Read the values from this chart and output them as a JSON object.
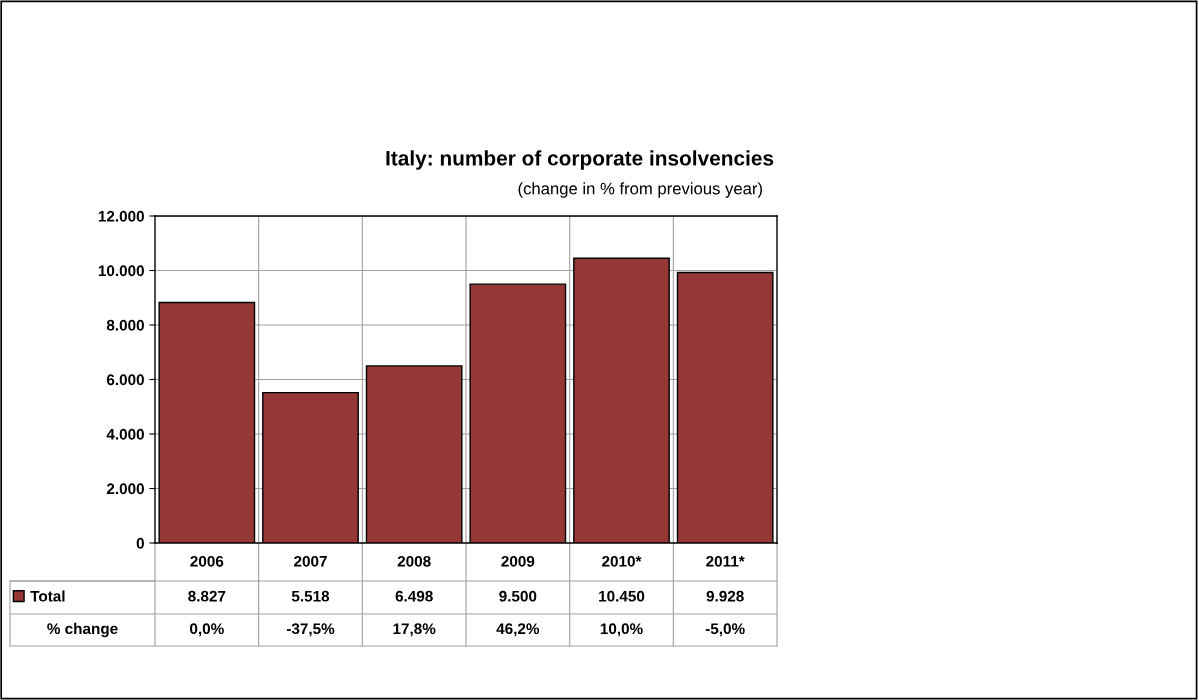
{
  "chart_data": {
    "type": "bar",
    "title": "Italy: number of corporate insolvencies",
    "subtitle": "(change in % from previous year)",
    "categories": [
      "2006",
      "2007",
      "2008",
      "2009",
      "2010*",
      "2011*"
    ],
    "series": [
      {
        "name": "Total",
        "color": "#953735",
        "values": [
          8827,
          5518,
          6498,
          9500,
          10450,
          9928
        ],
        "value_labels": [
          "8.827",
          "5.518",
          "6.498",
          "9.500",
          "10.450",
          "9.928"
        ]
      }
    ],
    "annotations": [
      "% change",
      "0,0%",
      "-37,5%",
      "17,8%",
      "46,2%",
      "10,0%",
      "-5,0%"
    ],
    "ylim": [
      0,
      12000
    ],
    "yticks": [
      {
        "value": 0,
        "label": "0"
      },
      {
        "value": 2000,
        "label": "2.000"
      },
      {
        "value": 4000,
        "label": "4.000"
      },
      {
        "value": 6000,
        "label": "6.000"
      },
      {
        "value": 8000,
        "label": "8.000"
      },
      {
        "value": 10000,
        "label": "10.000"
      },
      {
        "value": 12000,
        "label": "12.000"
      }
    ],
    "grid": true,
    "legend": "bottom"
  }
}
